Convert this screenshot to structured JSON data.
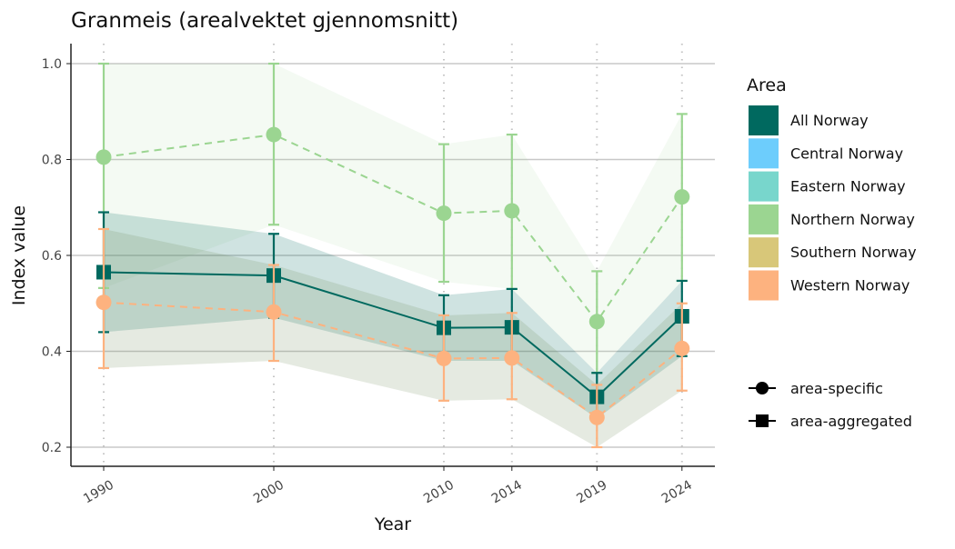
{
  "chart_data": {
    "type": "line",
    "title": "Granmeis (arealvektet gjennomsnitt)",
    "xlabel": "Year",
    "ylabel": "Index value",
    "x": [
      1990,
      2000,
      2010,
      2014,
      2019,
      2024
    ],
    "x_tick_labels": [
      "1990",
      "2000",
      "2010",
      "2014",
      "2019",
      "2024"
    ],
    "ylim": [
      0.17,
      1.04
    ],
    "y_ticks": [
      0.2,
      0.4,
      0.6,
      0.8,
      1.0
    ],
    "y_tick_labels": [
      "0.2",
      "0.4",
      "0.6",
      "0.8",
      "1.0"
    ],
    "grid": "horizontal major lines, dotted vertical lines at years",
    "legend": {
      "title": "Area",
      "position": "right",
      "entries": [
        {
          "name": "All Norway",
          "color": "#00695f"
        },
        {
          "name": "Central Norway",
          "color": "#6dcdfc"
        },
        {
          "name": "Eastern Norway",
          "color": "#78d6cc"
        },
        {
          "name": "Northern Norway",
          "color": "#9bd591"
        },
        {
          "name": "Southern Norway",
          "color": "#d8c779"
        },
        {
          "name": "Western Norway",
          "color": "#fdb27f"
        }
      ],
      "shape_entries": [
        {
          "name": "area-specific",
          "shape": "circle"
        },
        {
          "name": "area-aggregated",
          "shape": "square"
        }
      ]
    },
    "series": [
      {
        "name": "Northern Norway",
        "shape": "circle",
        "dashed": true,
        "color": "#9bd591",
        "ribbon": "rgba(155,213,145,0.11)",
        "values": [
          0.805,
          0.852,
          0.688,
          0.693,
          0.462,
          0.722
        ],
        "lower": [
          0.532,
          0.664,
          0.545,
          0.53,
          0.355,
          0.547
        ],
        "upper": [
          1.0,
          1.0,
          0.832,
          0.852,
          0.567,
          0.895
        ]
      },
      {
        "name": "All Norway",
        "shape": "square",
        "dashed": false,
        "color": "#00695f",
        "ribbon": "rgba(0,105,95,0.19)",
        "values": [
          0.565,
          0.558,
          0.449,
          0.45,
          0.305,
          0.473
        ],
        "lower": [
          0.44,
          0.47,
          0.38,
          0.38,
          0.26,
          0.39
        ],
        "upper": [
          0.69,
          0.645,
          0.517,
          0.53,
          0.355,
          0.547
        ]
      },
      {
        "name": "Western Norway",
        "shape": "circle",
        "dashed": true,
        "color": "#fdb27f",
        "ribbon": "rgba(110,140,90,0.18)",
        "values": [
          0.502,
          0.482,
          0.385,
          0.386,
          0.262,
          0.406
        ],
        "lower": [
          0.365,
          0.38,
          0.297,
          0.3,
          0.2,
          0.318
        ],
        "upper": [
          0.655,
          0.58,
          0.475,
          0.48,
          0.33,
          0.5
        ]
      }
    ]
  }
}
